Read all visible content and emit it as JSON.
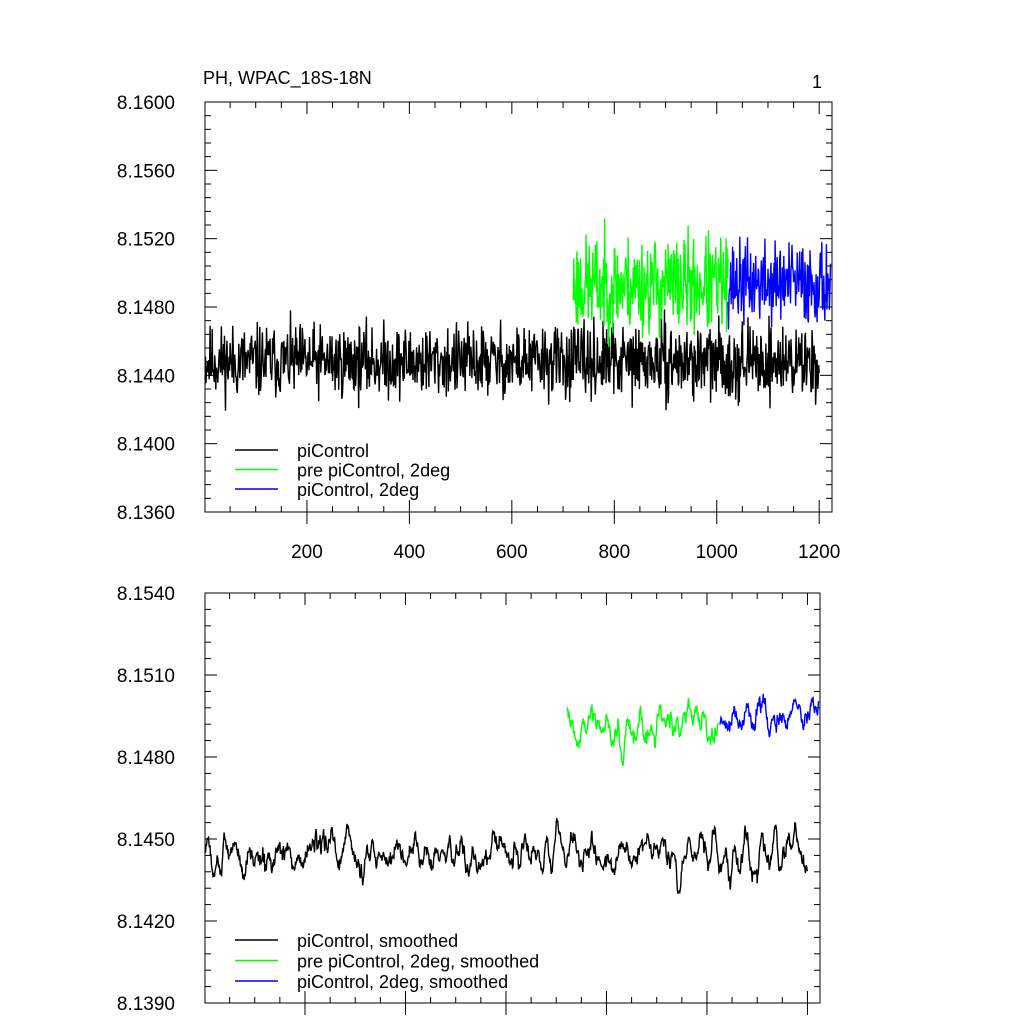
{
  "page_title": "PH, WPAC_18S-18N",
  "page_number": "1",
  "chart_data": [
    {
      "id": "raw",
      "type": "line",
      "xlim": [
        1,
        1225
      ],
      "ylim": [
        8.136,
        8.16
      ],
      "x_ticks": [
        200,
        400,
        600,
        800,
        1000,
        1200
      ],
      "x_tick_labels": [
        "200",
        "400",
        "600",
        "800",
        "1000",
        "1200"
      ],
      "y_ticks": [
        8.136,
        8.14,
        8.144,
        8.148,
        8.152,
        8.156,
        8.16
      ],
      "y_tick_labels": [
        "8.1360",
        "8.1400",
        "8.1440",
        "8.1480",
        "8.1520",
        "8.1560",
        "8.1600"
      ],
      "legend_position": "bottom-left",
      "series": [
        {
          "name": "piControl",
          "color": "#000000",
          "start": 1,
          "end": 1200,
          "base": 8.1448,
          "noise": 0.0021,
          "seed": 11
        },
        {
          "name": "pre piControl, 2deg",
          "color": "#00ff00",
          "start": 720,
          "end": 1022,
          "base": 8.1493,
          "noise": 0.0028,
          "seed": 23
        },
        {
          "name": "piControl, 2deg",
          "color": "#0000ff",
          "start": 1022,
          "end": 1222,
          "base": 8.1494,
          "noise": 0.0024,
          "seed": 37
        }
      ]
    },
    {
      "id": "smoothed",
      "type": "line",
      "xlim": [
        1,
        1225
      ],
      "ylim": [
        8.139,
        8.154
      ],
      "x_ticks": [
        200,
        400,
        600,
        800,
        1000,
        1200
      ],
      "x_tick_labels": [],
      "y_ticks": [
        8.139,
        8.142,
        8.145,
        8.148,
        8.151,
        8.154
      ],
      "y_tick_labels": [
        "8.1390",
        "8.1420",
        "8.1450",
        "8.1480",
        "8.1510",
        "8.1540"
      ],
      "legend_position": "bottom-left",
      "series": [
        {
          "name": "piControl, smoothed",
          "color": "#000000",
          "start": 1,
          "end": 1200,
          "base": 8.1444,
          "noise": 0.0011,
          "seed": 51
        },
        {
          "name": "pre piControl, 2deg, smoothed",
          "color": "#00ff00",
          "start": 722,
          "end": 1022,
          "base": 8.1493,
          "noise": 0.0011,
          "seed": 63
        },
        {
          "name": "piControl, 2deg, smoothed",
          "color": "#0000ff",
          "start": 1026,
          "end": 1222,
          "base": 8.1496,
          "noise": 0.001,
          "seed": 79
        }
      ]
    }
  ]
}
